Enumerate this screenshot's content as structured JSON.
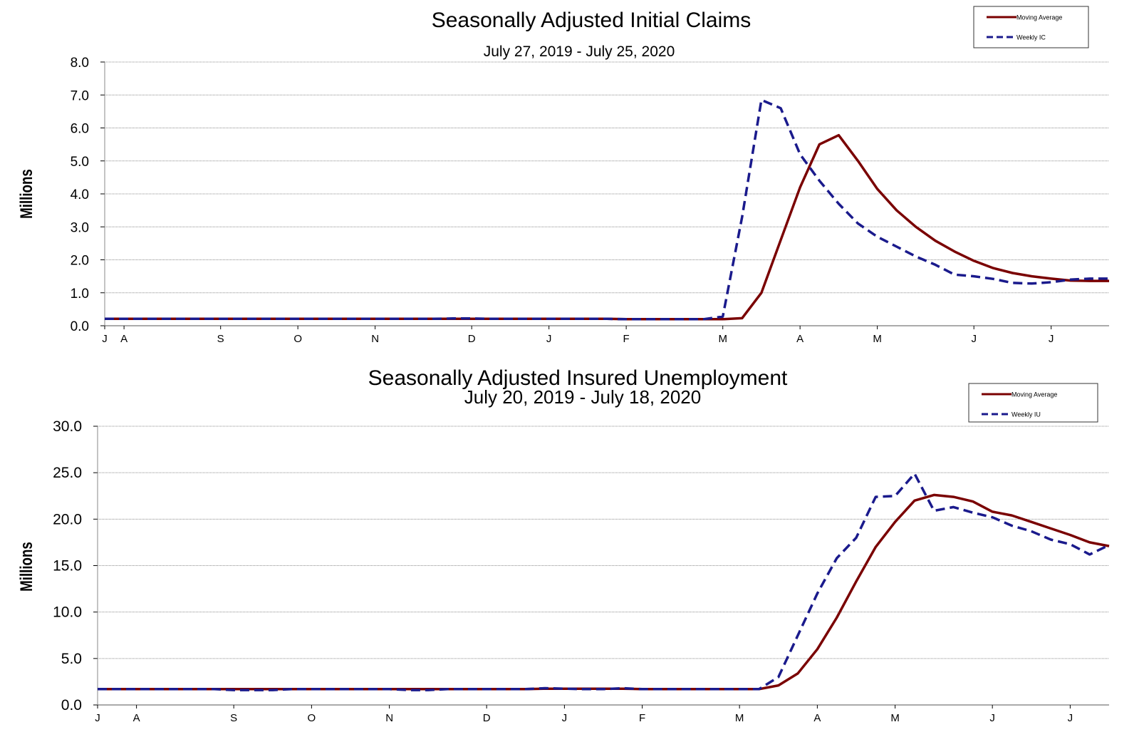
{
  "colors": {
    "moving_average": "#7a0000",
    "weekly": "#1a1a8c",
    "grid": "#8c8c8c",
    "frame": "#000000"
  },
  "chart_data": [
    {
      "type": "line",
      "title": "Seasonally Adjusted Initial Claims",
      "subtitle": "July 27, 2019 - July 25, 2020",
      "ylabel": "Millions",
      "ylim": [
        0,
        8
      ],
      "yticks": [
        "0.0",
        "1.0",
        "2.0",
        "3.0",
        "4.0",
        "5.0",
        "6.0",
        "7.0",
        "8.0"
      ],
      "xlim": [
        0,
        52
      ],
      "xticks": [
        {
          "label": "J",
          "x": 0
        },
        {
          "label": "A",
          "x": 1
        },
        {
          "label": "S",
          "x": 6
        },
        {
          "label": "O",
          "x": 10
        },
        {
          "label": "N",
          "x": 14
        },
        {
          "label": "D",
          "x": 19
        },
        {
          "label": "J",
          "x": 23
        },
        {
          "label": "F",
          "x": 27
        },
        {
          "label": "M",
          "x": 32
        },
        {
          "label": "A",
          "x": 36
        },
        {
          "label": "M",
          "x": 40
        },
        {
          "label": "J",
          "x": 45
        },
        {
          "label": "J",
          "x": 49
        }
      ],
      "grid": true,
      "legend_position": "top-right",
      "series": [
        {
          "name": "Moving Average",
          "style": "solid",
          "x": [
            0,
            1,
            2,
            3,
            4,
            5,
            6,
            7,
            8,
            9,
            10,
            11,
            12,
            13,
            14,
            15,
            16,
            17,
            18,
            19,
            20,
            21,
            22,
            23,
            24,
            25,
            26,
            27,
            28,
            29,
            30,
            31,
            32,
            33,
            34,
            35,
            36,
            37,
            38,
            39,
            40,
            41,
            42,
            43,
            44,
            45,
            46,
            47,
            48,
            49,
            50,
            51,
            52
          ],
          "values": [
            0.21,
            0.21,
            0.21,
            0.21,
            0.21,
            0.21,
            0.21,
            0.21,
            0.21,
            0.21,
            0.21,
            0.21,
            0.21,
            0.21,
            0.21,
            0.21,
            0.21,
            0.21,
            0.21,
            0.21,
            0.21,
            0.21,
            0.21,
            0.21,
            0.21,
            0.21,
            0.21,
            0.2,
            0.2,
            0.2,
            0.2,
            0.2,
            0.2,
            0.23,
            1.0,
            2.6,
            4.2,
            5.5,
            5.78,
            5.0,
            4.15,
            3.5,
            3.0,
            2.58,
            2.25,
            1.97,
            1.75,
            1.6,
            1.5,
            1.43,
            1.37,
            1.36,
            1.36
          ]
        },
        {
          "name": "Weekly IC",
          "style": "dashed",
          "x": [
            0,
            1,
            2,
            3,
            4,
            5,
            6,
            7,
            8,
            9,
            10,
            11,
            12,
            13,
            14,
            15,
            16,
            17,
            18,
            19,
            20,
            21,
            22,
            23,
            24,
            25,
            26,
            27,
            28,
            29,
            30,
            31,
            32,
            33,
            34,
            35,
            36,
            37,
            38,
            39,
            40,
            41,
            42,
            43,
            44,
            45,
            46,
            47,
            48,
            49,
            50,
            51,
            52
          ],
          "values": [
            0.21,
            0.21,
            0.21,
            0.21,
            0.21,
            0.21,
            0.21,
            0.21,
            0.21,
            0.21,
            0.21,
            0.21,
            0.21,
            0.21,
            0.21,
            0.21,
            0.21,
            0.21,
            0.22,
            0.22,
            0.21,
            0.21,
            0.21,
            0.21,
            0.21,
            0.21,
            0.21,
            0.2,
            0.2,
            0.2,
            0.2,
            0.2,
            0.28,
            3.3,
            6.85,
            6.6,
            5.2,
            4.4,
            3.7,
            3.1,
            2.7,
            2.4,
            2.1,
            1.85,
            1.55,
            1.5,
            1.42,
            1.3,
            1.28,
            1.32,
            1.4,
            1.43,
            1.43
          ]
        }
      ]
    },
    {
      "type": "line",
      "title": "Seasonally Adjusted Insured Unemployment",
      "subtitle": "July 20, 2019 - July 18, 2020",
      "ylabel": "Millions",
      "ylim": [
        0,
        30
      ],
      "yticks": [
        "0.0",
        "5.0",
        "10.0",
        "15.0",
        "20.0",
        "25.0",
        "30.0"
      ],
      "xlim": [
        0,
        52
      ],
      "xticks": [
        {
          "label": "J",
          "x": 0
        },
        {
          "label": "A",
          "x": 2
        },
        {
          "label": "S",
          "x": 7
        },
        {
          "label": "O",
          "x": 11
        },
        {
          "label": "N",
          "x": 15
        },
        {
          "label": "D",
          "x": 20
        },
        {
          "label": "J",
          "x": 24
        },
        {
          "label": "F",
          "x": 28
        },
        {
          "label": "M",
          "x": 33
        },
        {
          "label": "A",
          "x": 37
        },
        {
          "label": "M",
          "x": 41
        },
        {
          "label": "J",
          "x": 46
        },
        {
          "label": "J",
          "x": 50
        }
      ],
      "grid": true,
      "legend_position": "top-right",
      "series": [
        {
          "name": "Moving Average",
          "style": "solid",
          "x": [
            0,
            1,
            2,
            3,
            4,
            5,
            6,
            7,
            8,
            9,
            10,
            11,
            12,
            13,
            14,
            15,
            16,
            17,
            18,
            19,
            20,
            21,
            22,
            23,
            24,
            25,
            26,
            27,
            28,
            29,
            30,
            31,
            32,
            33,
            34,
            35,
            36,
            37,
            38,
            39,
            40,
            41,
            42,
            43,
            44,
            45,
            46,
            47,
            48,
            49,
            50,
            51,
            52
          ],
          "values": [
            1.7,
            1.7,
            1.7,
            1.7,
            1.7,
            1.7,
            1.7,
            1.7,
            1.7,
            1.7,
            1.7,
            1.7,
            1.7,
            1.7,
            1.7,
            1.7,
            1.7,
            1.7,
            1.7,
            1.7,
            1.7,
            1.7,
            1.7,
            1.75,
            1.75,
            1.75,
            1.75,
            1.75,
            1.7,
            1.7,
            1.7,
            1.7,
            1.7,
            1.7,
            1.7,
            2.1,
            3.4,
            6.0,
            9.4,
            13.3,
            17.0,
            19.7,
            22.0,
            22.6,
            22.4,
            21.9,
            20.8,
            20.4,
            19.7,
            19.0,
            18.3,
            17.5,
            17.1
          ]
        },
        {
          "name": "Weekly IU",
          "style": "dashed",
          "x": [
            0,
            1,
            2,
            3,
            4,
            5,
            6,
            7,
            8,
            9,
            10,
            11,
            12,
            13,
            14,
            15,
            16,
            17,
            18,
            19,
            20,
            21,
            22,
            23,
            24,
            25,
            26,
            27,
            28,
            29,
            30,
            31,
            32,
            33,
            34,
            35,
            36,
            37,
            38,
            39,
            40,
            41,
            42,
            43,
            44,
            45,
            46,
            47,
            48,
            49,
            50,
            51,
            52
          ],
          "values": [
            1.7,
            1.7,
            1.7,
            1.7,
            1.7,
            1.7,
            1.7,
            1.6,
            1.6,
            1.6,
            1.7,
            1.7,
            1.7,
            1.7,
            1.7,
            1.7,
            1.6,
            1.6,
            1.7,
            1.7,
            1.7,
            1.7,
            1.7,
            1.8,
            1.75,
            1.7,
            1.7,
            1.8,
            1.7,
            1.7,
            1.7,
            1.7,
            1.7,
            1.7,
            1.7,
            3.0,
            7.5,
            12.0,
            15.8,
            18.0,
            22.4,
            22.5,
            24.9,
            20.9,
            21.3,
            20.7,
            20.2,
            19.3,
            18.7,
            17.8,
            17.3,
            16.2,
            17.2
          ]
        }
      ]
    }
  ]
}
